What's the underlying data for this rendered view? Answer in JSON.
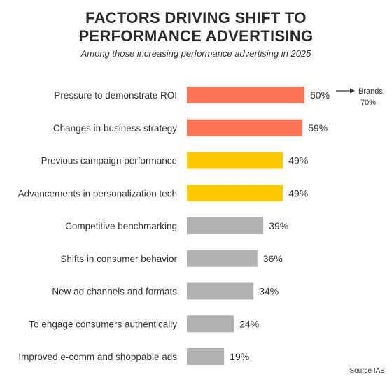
{
  "header": {
    "title_line1": "FACTORS DRIVING SHIFT TO",
    "title_line2": "PERFORMANCE ADVERTISING",
    "subtitle": "Among those increasing performance advertising in 2025"
  },
  "annotation": {
    "line1": "Brands:",
    "line2": "70%"
  },
  "source": "Source IAB",
  "colors": {
    "coral": "#fe7357",
    "yellow": "#fdc902",
    "gray": "#b3b0b0",
    "text": "#333333"
  },
  "chart_data": {
    "type": "bar",
    "orientation": "horizontal",
    "title": "FACTORS DRIVING SHIFT TO PERFORMANCE ADVERTISING",
    "subtitle": "Among those increasing performance advertising in 2025",
    "categories": [
      "Pressure to demonstrate ROI",
      "Changes in business strategy",
      "Previous campaign performance",
      "Advancements in personalization tech",
      "Competitive benchmarking",
      "Shifts in consumer behavior",
      "New ad channels and formats",
      "To engage consumers authentically",
      "Improved e-comm and shoppable ads"
    ],
    "values": [
      60,
      59,
      49,
      49,
      39,
      36,
      34,
      24,
      19
    ],
    "value_labels": [
      "60%",
      "59%",
      "49%",
      "49%",
      "39%",
      "36%",
      "34%",
      "24%",
      "19%"
    ],
    "bar_colors": [
      "coral",
      "coral",
      "yellow",
      "yellow",
      "gray",
      "gray",
      "gray",
      "gray",
      "gray"
    ],
    "unit": "%",
    "xlim": [
      0,
      60
    ],
    "grid": false,
    "legend": false
  }
}
